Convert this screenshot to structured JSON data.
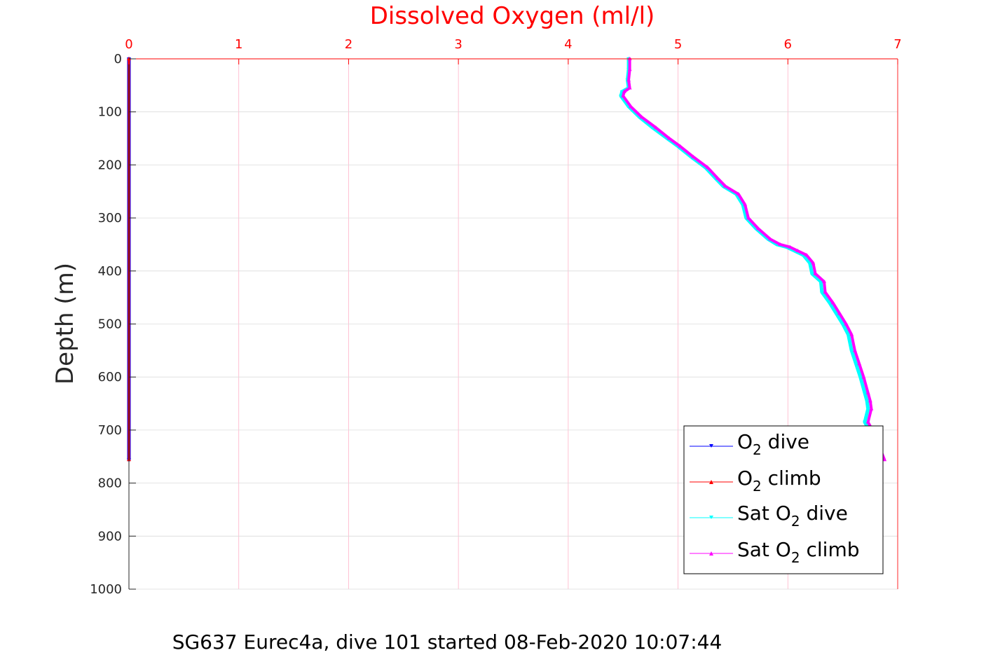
{
  "chart_data": {
    "type": "line",
    "title": "Dissolved Oxygen (ml/l)",
    "xlabel": "Dissolved Oxygen (ml/l)",
    "ylabel": "Depth (m)",
    "caption": "SG637 Eurec4a, dive 101 started 08-Feb-2020 10:07:44",
    "xlim": [
      0,
      7
    ],
    "ylim": [
      0,
      1000
    ],
    "y_reversed": true,
    "xticks": [
      "0",
      "1",
      "2",
      "3",
      "4",
      "5",
      "6",
      "7"
    ],
    "yticks": [
      "0",
      "100",
      "200",
      "300",
      "400",
      "500",
      "600",
      "700",
      "800",
      "900",
      "1000"
    ],
    "grid": true,
    "legend_position": "bottom-right",
    "series": [
      {
        "name": "O2 dive",
        "label_main": "O",
        "label_sub": "2",
        "label_tail": " dive",
        "color": "#0000ff",
        "x": [
          0,
          0
        ],
        "y": [
          0,
          756
        ]
      },
      {
        "name": "O2 climb",
        "label_main": "O",
        "label_sub": "2",
        "label_tail": " climb",
        "color": "#ff0000",
        "x": [
          0,
          0
        ],
        "y": [
          0,
          756
        ]
      },
      {
        "name": "Sat O2 dive",
        "label_main": "Sat O",
        "label_sub": "2",
        "label_tail": " dive",
        "color": "#00ffff",
        "x": [
          4.55,
          4.55,
          4.54,
          4.55,
          4.49,
          4.48,
          4.55,
          4.65,
          4.77,
          4.9,
          5.0,
          5.12,
          5.25,
          5.34,
          5.41,
          5.53,
          5.59,
          5.62,
          5.71,
          5.82,
          5.9,
          5.99,
          6.06,
          6.14,
          6.2,
          6.22,
          6.3,
          6.31,
          6.38,
          6.44,
          6.5,
          6.55,
          6.58,
          6.62,
          6.66,
          6.7,
          6.72,
          6.73,
          6.7,
          6.74,
          6.8,
          6.86
        ],
        "y": [
          0,
          20,
          40,
          55,
          62,
          70,
          90,
          110,
          130,
          150,
          165,
          185,
          205,
          225,
          240,
          255,
          275,
          300,
          320,
          340,
          350,
          355,
          362,
          370,
          385,
          405,
          420,
          440,
          460,
          480,
          500,
          520,
          550,
          575,
          600,
          630,
          645,
          660,
          685,
          700,
          730,
          756
        ]
      },
      {
        "name": "Sat O2 climb",
        "label_main": "Sat O",
        "label_sub": "2",
        "label_tail": " climb",
        "color": "#ff00ff",
        "x": [
          4.56,
          4.56,
          4.55,
          4.56,
          4.51,
          4.5,
          4.57,
          4.67,
          4.8,
          4.92,
          5.02,
          5.14,
          5.27,
          5.36,
          5.43,
          5.55,
          5.61,
          5.64,
          5.73,
          5.84,
          5.93,
          6.02,
          6.09,
          6.17,
          6.23,
          6.25,
          6.33,
          6.34,
          6.41,
          6.47,
          6.53,
          6.58,
          6.61,
          6.65,
          6.69,
          6.73,
          6.75,
          6.76,
          6.73,
          6.77,
          6.83,
          6.88
        ],
        "y": [
          0,
          20,
          40,
          55,
          62,
          70,
          90,
          110,
          130,
          150,
          165,
          185,
          205,
          225,
          240,
          255,
          275,
          300,
          320,
          340,
          350,
          355,
          362,
          370,
          385,
          405,
          420,
          440,
          460,
          480,
          500,
          520,
          550,
          575,
          600,
          630,
          645,
          660,
          685,
          700,
          730,
          756
        ]
      }
    ]
  }
}
